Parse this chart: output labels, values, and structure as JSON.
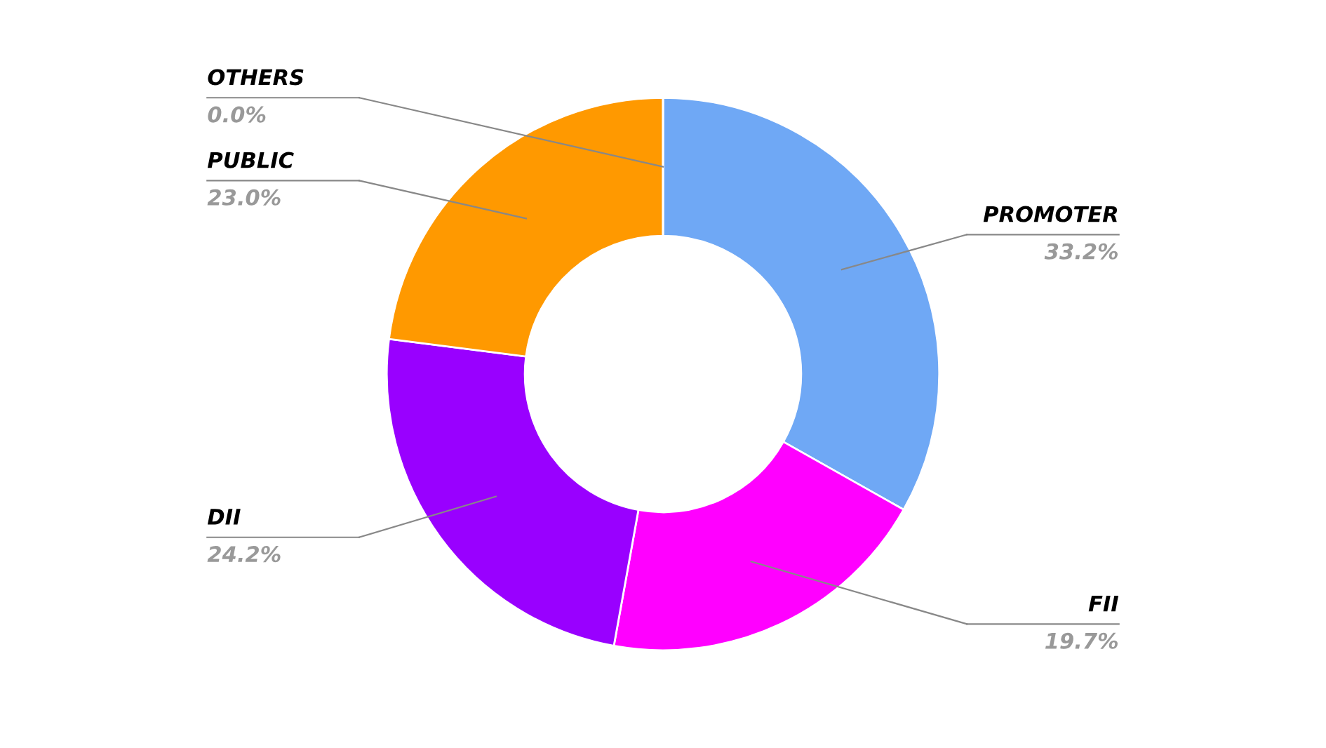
{
  "chart_data": {
    "type": "donut",
    "categories": [
      "PROMOTER",
      "FII",
      "DII",
      "PUBLIC",
      "OTHERS"
    ],
    "values": [
      33.2,
      19.7,
      24.2,
      23.0,
      0.0
    ],
    "value_labels": [
      "33.2%",
      "19.7%",
      "24.2%",
      "23.0%",
      "0.0%"
    ],
    "colors": [
      "#6fa8f5",
      "#ff00ff",
      "#9900ff",
      "#ff9900",
      "#dc3912"
    ]
  }
}
